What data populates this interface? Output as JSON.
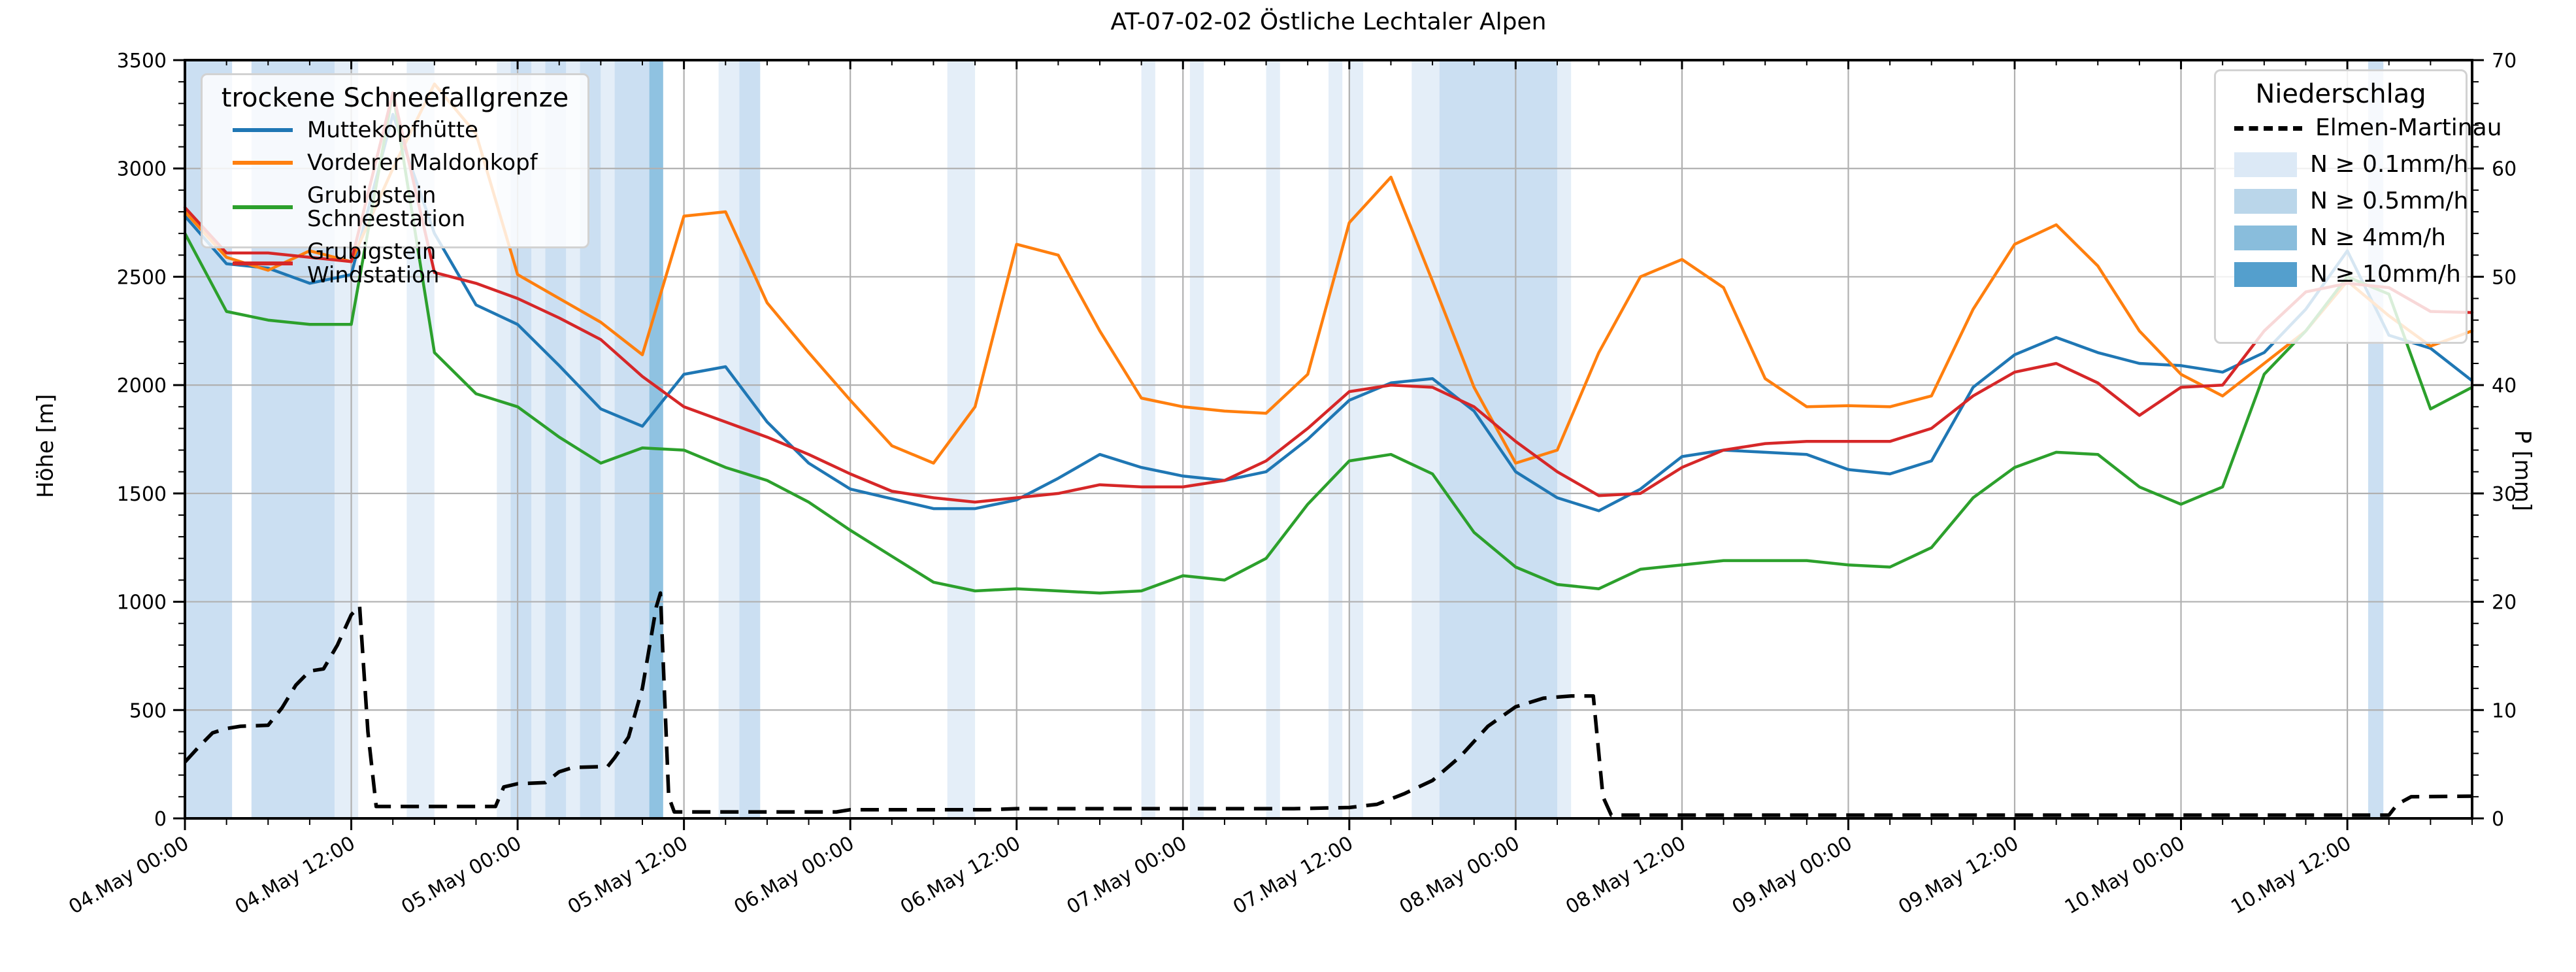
{
  "title": "AT-07-02-02 Östliche Lechtaler Alpen",
  "axes": {
    "ylabel": "Höhe [m]",
    "y2label": "P [mm]",
    "ylim": [
      0,
      3500
    ],
    "y2lim": [
      0,
      70
    ],
    "y_tick_step": 500,
    "y2_tick_step": 10,
    "x_tick_labels": [
      "04.May 00:00",
      "04.May 12:00",
      "05.May 00:00",
      "05.May 12:00",
      "06.May 00:00",
      "06.May 12:00",
      "07.May 00:00",
      "07.May 12:00",
      "08.May 00:00",
      "08.May 12:00",
      "09.May 00:00",
      "09.May 12:00",
      "10.May 00:00",
      "10.May 12:00"
    ]
  },
  "legend_snowline": {
    "title": "trockene Schneefallgrenze",
    "items": [
      {
        "label": "Muttekopfhütte",
        "color": "#1f77b4"
      },
      {
        "label": "Vorderer Maldonkopf",
        "color": "#ff7f0e"
      },
      {
        "label": "Grubigstein Schneestation",
        "color": "#2ca02c"
      },
      {
        "label": "Grubigstein Windstation",
        "color": "#d62728"
      }
    ]
  },
  "legend_precip": {
    "title": "Niederschlag",
    "line_item": {
      "label": "Elmen-Martinau",
      "color": "#000000"
    },
    "classes": [
      {
        "label": "N ≥ 0.1mm/h",
        "color": "#dce9f6"
      },
      {
        "label": "N ≥ 0.5mm/h",
        "color": "#bad6ea"
      },
      {
        "label": "N ≥ 4mm/h",
        "color": "#89bddc"
      },
      {
        "label": "N ≥ 10mm/h",
        "color": "#549fcd"
      }
    ]
  },
  "chart_data": {
    "type": "line",
    "title": "AT-07-02-02 Östliche Lechtaler Alpen",
    "xlabel": "",
    "ylabel": "Höhe [m]",
    "y2label": "P [mm]",
    "x_unit": "hours since 04.May 00:00",
    "x_range_h": [
      0,
      165
    ],
    "ylim": [
      0,
      3500
    ],
    "y2lim": [
      0,
      70
    ],
    "grid": true,
    "x_step_h": 3,
    "x_ticks": [
      {
        "h": 0,
        "label": "04.May 00:00"
      },
      {
        "h": 12,
        "label": "04.May 12:00"
      },
      {
        "h": 24,
        "label": "05.May 00:00"
      },
      {
        "h": 36,
        "label": "05.May 12:00"
      },
      {
        "h": 48,
        "label": "06.May 00:00"
      },
      {
        "h": 60,
        "label": "06.May 12:00"
      },
      {
        "h": 72,
        "label": "07.May 00:00"
      },
      {
        "h": 84,
        "label": "07.May 12:00"
      },
      {
        "h": 96,
        "label": "08.May 00:00"
      },
      {
        "h": 108,
        "label": "08.May 12:00"
      },
      {
        "h": 120,
        "label": "09.May 00:00"
      },
      {
        "h": 132,
        "label": "09.May 12:00"
      },
      {
        "h": 144,
        "label": "10.May 00:00"
      },
      {
        "h": 156,
        "label": "10.May 12:00"
      }
    ],
    "series": [
      {
        "name": "Muttekopfhütte",
        "color": "#1f77b4",
        "values": [
          2780,
          2560,
          2540,
          2470,
          2510,
          3250,
          2700,
          2370,
          2280,
          2090,
          1890,
          1810,
          2050,
          2085,
          1830,
          1640,
          1520,
          1475,
          1430,
          1430,
          1470,
          1570,
          1680,
          1620,
          1580,
          1560,
          1600,
          1750,
          1930,
          2010,
          2030,
          1880,
          1600,
          1480,
          1420,
          1520,
          1670,
          1700,
          1690,
          1680,
          1610,
          1590,
          1650,
          1990,
          2140,
          2220,
          2150,
          2100,
          2090,
          2060,
          2150,
          2350,
          2620,
          2230,
          2170,
          2020
        ]
      },
      {
        "name": "Vorderer Maldonkopf",
        "color": "#ff7f0e",
        "values": [
          2800,
          2590,
          2530,
          2620,
          2570,
          3000,
          3390,
          3160,
          2510,
          2400,
          2290,
          2140,
          2780,
          2800,
          2380,
          2150,
          1930,
          1720,
          1640,
          1900,
          2650,
          2600,
          2250,
          1940,
          1900,
          1880,
          1870,
          2050,
          2750,
          2960,
          2480,
          1990,
          1640,
          1700,
          2150,
          2500,
          2580,
          2450,
          2030,
          1900,
          1905,
          1900,
          1950,
          2350,
          2650,
          2740,
          2550,
          2250,
          2050,
          1950,
          2100,
          2250,
          2480,
          2320,
          2180,
          2250
        ]
      },
      {
        "name": "Grubigstein Schneestation",
        "color": "#2ca02c",
        "values": [
          2700,
          2340,
          2300,
          2280,
          2280,
          3350,
          2150,
          1960,
          1900,
          1760,
          1640,
          1710,
          1700,
          1620,
          1560,
          1460,
          1330,
          1210,
          1090,
          1050,
          1060,
          1050,
          1040,
          1050,
          1120,
          1100,
          1200,
          1450,
          1650,
          1680,
          1590,
          1320,
          1160,
          1080,
          1060,
          1150,
          1170,
          1190,
          1190,
          1190,
          1170,
          1160,
          1250,
          1480,
          1620,
          1690,
          1680,
          1530,
          1450,
          1530,
          2050,
          2250,
          2500,
          2420,
          1890,
          1990
        ]
      },
      {
        "name": "Grubigstein Windstation",
        "color": "#d62728",
        "values": [
          2820,
          2610,
          2610,
          2590,
          2570,
          3350,
          2520,
          2470,
          2400,
          2310,
          2210,
          2040,
          1900,
          1830,
          1760,
          1680,
          1590,
          1510,
          1480,
          1460,
          1480,
          1500,
          1540,
          1530,
          1530,
          1560,
          1650,
          1800,
          1970,
          2000,
          1990,
          1900,
          1740,
          1600,
          1490,
          1500,
          1620,
          1700,
          1730,
          1740,
          1740,
          1740,
          1800,
          1950,
          2060,
          2100,
          2010,
          1860,
          1990,
          2000,
          2250,
          2430,
          2470,
          2450,
          2340,
          2335
        ]
      }
    ],
    "precip_line": {
      "name": "Elmen-Martinau",
      "color": "#000000",
      "style": "dashed",
      "axis": "right",
      "points": [
        [
          0,
          5.2
        ],
        [
          1,
          6.6
        ],
        [
          2,
          7.9
        ],
        [
          3,
          8.3
        ],
        [
          4,
          8.5
        ],
        [
          6,
          8.6
        ],
        [
          7,
          10.2
        ],
        [
          8,
          12.3
        ],
        [
          9,
          13.6
        ],
        [
          10,
          13.8
        ],
        [
          11,
          16.0
        ],
        [
          12,
          18.8
        ],
        [
          12.6,
          19.6
        ],
        [
          13.2,
          8.0
        ],
        [
          13.8,
          1.1
        ],
        [
          22.4,
          1.1
        ],
        [
          23,
          2.9
        ],
        [
          24,
          3.2
        ],
        [
          26,
          3.3
        ],
        [
          27,
          4.3
        ],
        [
          28,
          4.7
        ],
        [
          30.5,
          4.8
        ],
        [
          31,
          5.6
        ],
        [
          32,
          7.5
        ],
        [
          33,
          12.0
        ],
        [
          34,
          19.5
        ],
        [
          34.3,
          20.8
        ],
        [
          34.9,
          2.0
        ],
        [
          35.3,
          0.6
        ],
        [
          47,
          0.6
        ],
        [
          48,
          0.8
        ],
        [
          58,
          0.8
        ],
        [
          60,
          0.9
        ],
        [
          80,
          0.9
        ],
        [
          84,
          1.0
        ],
        [
          86,
          1.3
        ],
        [
          88,
          2.3
        ],
        [
          90,
          3.5
        ],
        [
          92,
          5.7
        ],
        [
          94,
          8.5
        ],
        [
          96,
          10.3
        ],
        [
          98,
          11.1
        ],
        [
          100,
          11.3
        ],
        [
          101.6,
          11.3
        ],
        [
          102.3,
          2.0
        ],
        [
          102.9,
          0.3
        ],
        [
          159,
          0.3
        ],
        [
          159.6,
          1.3
        ],
        [
          160.6,
          2.0
        ],
        [
          165,
          2.05
        ]
      ]
    },
    "precip_bands": {
      "class_colors": [
        "#e4eef8",
        "#cbdff2",
        "#8fc2e1",
        "#549fcd"
      ],
      "class_labels": [
        "N ≥ 0.1mm/h",
        "N ≥ 0.5mm/h",
        "N ≥ 4mm/h",
        "N ≥ 10mm/h"
      ],
      "intervals": [
        {
          "from_h": 0,
          "to_h": 3.4,
          "class": 2
        },
        {
          "from_h": 4.8,
          "to_h": 10.8,
          "class": 2
        },
        {
          "from_h": 10.8,
          "to_h": 12.5,
          "class": 1
        },
        {
          "from_h": 16,
          "to_h": 18,
          "class": 1
        },
        {
          "from_h": 22.5,
          "to_h": 23.5,
          "class": 1
        },
        {
          "from_h": 23.5,
          "to_h": 25,
          "class": 2
        },
        {
          "from_h": 25,
          "to_h": 26,
          "class": 1
        },
        {
          "from_h": 26,
          "to_h": 27.5,
          "class": 2
        },
        {
          "from_h": 27.5,
          "to_h": 28.5,
          "class": 1
        },
        {
          "from_h": 28.5,
          "to_h": 30,
          "class": 2
        },
        {
          "from_h": 30,
          "to_h": 31,
          "class": 1
        },
        {
          "from_h": 31,
          "to_h": 33.5,
          "class": 2
        },
        {
          "from_h": 33.5,
          "to_h": 34.5,
          "class": 3
        },
        {
          "from_h": 38.5,
          "to_h": 40,
          "class": 1
        },
        {
          "from_h": 40,
          "to_h": 41.5,
          "class": 2
        },
        {
          "from_h": 55,
          "to_h": 57,
          "class": 1
        },
        {
          "from_h": 69,
          "to_h": 70,
          "class": 1
        },
        {
          "from_h": 72.5,
          "to_h": 73.5,
          "class": 1
        },
        {
          "from_h": 78,
          "to_h": 79,
          "class": 1
        },
        {
          "from_h": 82.5,
          "to_h": 83.5,
          "class": 1
        },
        {
          "from_h": 84,
          "to_h": 85,
          "class": 1
        },
        {
          "from_h": 88.5,
          "to_h": 90.5,
          "class": 1
        },
        {
          "from_h": 90.5,
          "to_h": 99,
          "class": 2
        },
        {
          "from_h": 99,
          "to_h": 100,
          "class": 1
        },
        {
          "from_h": 157.5,
          "to_h": 158.6,
          "class": 2
        }
      ]
    },
    "legend_left_title": "trockene Schneefallgrenze",
    "legend_right_title": "Niederschlag"
  },
  "style": {
    "grid_color": "#b0b0b0",
    "spine_color": "#000000",
    "background": "#ffffff"
  }
}
